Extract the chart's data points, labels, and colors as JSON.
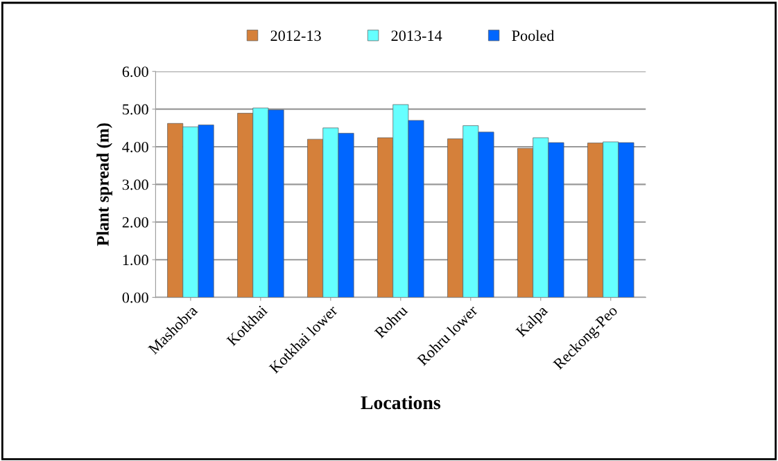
{
  "chart_data": {
    "type": "bar",
    "xlabel": "Locations",
    "ylabel": "Plant spread (m)",
    "categories": [
      "Mashobra",
      "Kotkhai",
      "Kotkhai lower",
      "Rohru",
      "Rohru lower",
      "Kalpa",
      "Reckong-Peo"
    ],
    "series": [
      {
        "name": "2012-13",
        "color": "#d5803a",
        "values": [
          4.62,
          4.89,
          4.2,
          4.24,
          4.21,
          3.96,
          4.1
        ]
      },
      {
        "name": "2013-14",
        "color": "#66ffff",
        "values": [
          4.53,
          5.03,
          4.5,
          5.12,
          4.56,
          4.24,
          4.13
        ]
      },
      {
        "name": "Pooled",
        "color": "#0066ff",
        "values": [
          4.58,
          4.98,
          4.36,
          4.7,
          4.39,
          4.11,
          4.11
        ]
      }
    ],
    "ylim": [
      0,
      6
    ],
    "yticks": [
      {
        "value": 0,
        "label": "0.00"
      },
      {
        "value": 1,
        "label": "1.00"
      },
      {
        "value": 2,
        "label": "2.00"
      },
      {
        "value": 3,
        "label": "3.00"
      },
      {
        "value": 4,
        "label": "4.00"
      },
      {
        "value": 5,
        "label": "5.00"
      },
      {
        "value": 6,
        "label": "6.00"
      }
    ],
    "grid": "y",
    "legend": "top"
  }
}
